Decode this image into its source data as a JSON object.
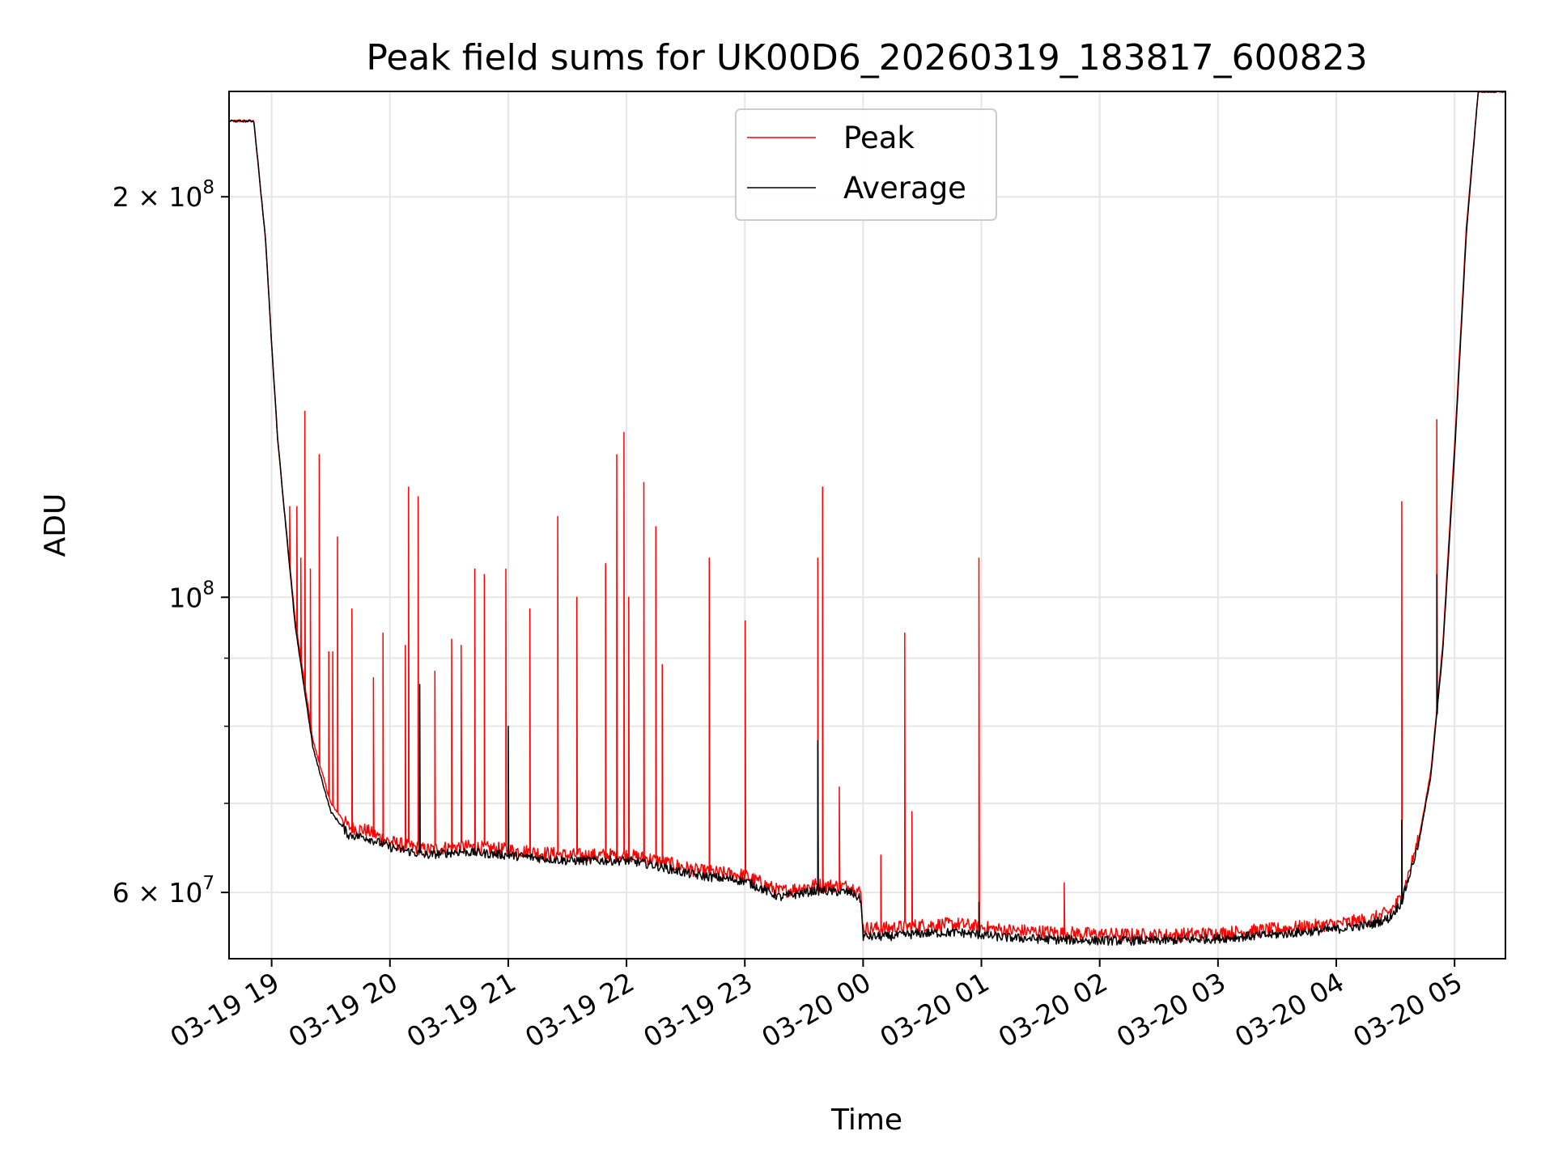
{
  "chart_data": {
    "type": "line",
    "title": "Peak field sums for UK00D6_20260319_183817_600823",
    "xlabel": "Time",
    "ylabel": "ADU",
    "yscale": "log",
    "ylim": [
      53500000,
      240000000
    ],
    "xlim_hours_from_1900_0319": [
      -0.36,
      10.43
    ],
    "x_tick_labels": [
      "03-19 19",
      "03-19 20",
      "03-19 21",
      "03-19 22",
      "03-19 23",
      "03-20 00",
      "03-20 01",
      "03-20 02",
      "03-20 03",
      "03-20 04",
      "03-20 05"
    ],
    "y_tick_labels": [
      {
        "value": 200000000,
        "mantissa": "2",
        "times": "×",
        "base": "10",
        "exp": "8"
      },
      {
        "value": 100000000,
        "mantissa": "",
        "times": "",
        "base": "10",
        "exp": "8"
      },
      {
        "value": 60000000,
        "mantissa": "6",
        "times": "×",
        "base": "10",
        "exp": "7"
      }
    ],
    "grid": true,
    "legend_position": "upper-center",
    "series": [
      {
        "name": "Peak",
        "color": "#ff0000",
        "baseline_x_hours": [
          -0.36,
          -0.15,
          -0.05,
          0.0,
          0.05,
          0.1,
          0.2,
          0.35,
          0.5,
          0.65,
          0.8,
          1.0,
          1.3,
          1.6,
          2.0,
          2.5,
          3.0,
          3.2,
          3.45,
          3.6,
          4.0,
          4.3,
          4.6,
          4.9,
          4.98,
          5.0,
          5.2,
          5.5,
          5.8,
          6.2,
          6.6,
          7.0,
          7.5,
          8.0,
          8.5,
          9.0,
          9.3,
          9.45,
          9.55,
          9.6,
          9.7,
          9.8,
          9.9,
          10.0,
          10.1,
          10.2
        ],
        "baseline_values": [
          228000000,
          228000000,
          185000000,
          155000000,
          132000000,
          118000000,
          96000000,
          78000000,
          70000000,
          67200000,
          66800000,
          65500000,
          64600000,
          65000000,
          64600000,
          64000000,
          64000000,
          63600000,
          62800000,
          62300000,
          61800000,
          60100000,
          60800000,
          60600000,
          60000000,
          56400000,
          56400000,
          56700000,
          56800000,
          56200000,
          56000000,
          55800000,
          55700000,
          55900000,
          56300000,
          56800000,
          57300000,
          58000000,
          59500000,
          61500000,
          66000000,
          74000000,
          92000000,
          130000000,
          190000000,
          240000000
        ],
        "spikes": [
          {
            "x": 0.28,
            "value": 138000000
          },
          {
            "x": 0.4,
            "value": 128000000
          },
          {
            "x": 0.21,
            "value": 117000000
          },
          {
            "x": 0.15,
            "value": 117000000
          },
          {
            "x": 0.25,
            "value": 107000000
          },
          {
            "x": 0.33,
            "value": 105000000
          },
          {
            "x": 0.56,
            "value": 111000000
          },
          {
            "x": 0.68,
            "value": 98000000
          },
          {
            "x": 0.86,
            "value": 87000000
          },
          {
            "x": 0.48,
            "value": 91000000
          },
          {
            "x": 0.52,
            "value": 91000000
          },
          {
            "x": 0.94,
            "value": 94000000
          },
          {
            "x": 1.16,
            "value": 121000000
          },
          {
            "x": 1.24,
            "value": 119000000
          },
          {
            "x": 1.13,
            "value": 92000000
          },
          {
            "x": 1.38,
            "value": 88000000
          },
          {
            "x": 1.52,
            "value": 93000000
          },
          {
            "x": 1.6,
            "value": 92000000
          },
          {
            "x": 1.72,
            "value": 105000000
          },
          {
            "x": 1.8,
            "value": 104000000
          },
          {
            "x": 1.98,
            "value": 105000000
          },
          {
            "x": 2.18,
            "value": 98000000
          },
          {
            "x": 2.42,
            "value": 115000000
          },
          {
            "x": 2.58,
            "value": 100000000
          },
          {
            "x": 2.82,
            "value": 106000000
          },
          {
            "x": 2.98,
            "value": 133000000
          },
          {
            "x": 2.92,
            "value": 128000000
          },
          {
            "x": 3.15,
            "value": 122000000
          },
          {
            "x": 3.25,
            "value": 113000000
          },
          {
            "x": 3.02,
            "value": 100000000
          },
          {
            "x": 3.3,
            "value": 89000000
          },
          {
            "x": 3.7,
            "value": 107000000
          },
          {
            "x": 4.0,
            "value": 96000000
          },
          {
            "x": 4.62,
            "value": 107000000
          },
          {
            "x": 4.66,
            "value": 121000000
          },
          {
            "x": 4.8,
            "value": 72000000
          },
          {
            "x": 5.15,
            "value": 64000000
          },
          {
            "x": 5.35,
            "value": 94000000
          },
          {
            "x": 5.41,
            "value": 69000000
          },
          {
            "x": 5.98,
            "value": 107000000
          },
          {
            "x": 6.7,
            "value": 61000000
          },
          {
            "x": 9.55,
            "value": 118000000
          },
          {
            "x": 9.85,
            "value": 136000000
          }
        ]
      },
      {
        "name": "Average",
        "color": "#000000",
        "baseline_x_hours": [
          -0.36,
          -0.15,
          -0.05,
          0.0,
          0.05,
          0.1,
          0.2,
          0.35,
          0.5,
          0.65,
          0.8,
          1.0,
          1.3,
          1.6,
          2.0,
          2.5,
          3.0,
          3.2,
          3.45,
          3.6,
          4.0,
          4.3,
          4.6,
          4.9,
          4.98,
          5.0,
          5.2,
          5.5,
          5.8,
          6.2,
          6.6,
          7.0,
          7.5,
          8.0,
          8.5,
          9.0,
          9.3,
          9.45,
          9.55,
          9.6,
          9.7,
          9.8,
          9.9,
          10.0,
          10.1,
          10.2
        ],
        "baseline_values": [
          228000000,
          228000000,
          185000000,
          155000000,
          132000000,
          118000000,
          95000000,
          77000000,
          69000000,
          66300000,
          66000000,
          64900000,
          64000000,
          64400000,
          64000000,
          63400000,
          63400000,
          63000000,
          62200000,
          61800000,
          61200000,
          59500000,
          60200000,
          60000000,
          59300000,
          55600000,
          55600000,
          55900000,
          56000000,
          55500000,
          55300000,
          55200000,
          55200000,
          55400000,
          55800000,
          56300000,
          56800000,
          57400000,
          59000000,
          61000000,
          65500000,
          73500000,
          91000000,
          128000000,
          188000000,
          240000000
        ],
        "spikes": [
          {
            "x": 2.0,
            "value": 80000000
          },
          {
            "x": 1.25,
            "value": 86000000
          },
          {
            "x": 4.62,
            "value": 78000000
          },
          {
            "x": 9.55,
            "value": 68000000
          },
          {
            "x": 9.85,
            "value": 104000000
          },
          {
            "x": 5.98,
            "value": 59000000
          }
        ]
      }
    ]
  }
}
